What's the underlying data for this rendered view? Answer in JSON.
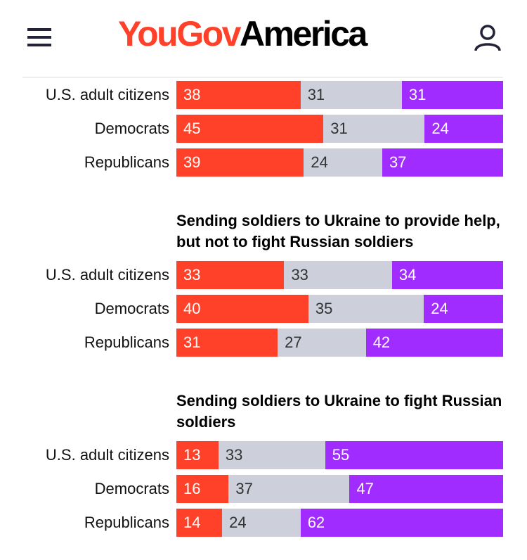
{
  "header": {
    "logo_part1": "YouGov",
    "logo_part2": "America"
  },
  "chart_data": {
    "type": "bar",
    "orientation": "horizontal",
    "stacked": true,
    "colors": [
      "#ff4129",
      "#cdd0da",
      "#a12cff"
    ],
    "sections": [
      {
        "title": "",
        "categories": [
          "U.S. adult citizens",
          "Democrats",
          "Republicans"
        ],
        "values": [
          [
            38,
            31,
            31
          ],
          [
            45,
            31,
            24
          ],
          [
            39,
            24,
            37
          ]
        ]
      },
      {
        "title": "Sending soldiers to Ukraine to provide help, but not to fight Russian soldiers",
        "categories": [
          "U.S. adult citizens",
          "Democrats",
          "Republicans"
        ],
        "values": [
          [
            33,
            33,
            34
          ],
          [
            40,
            35,
            24
          ],
          [
            31,
            27,
            42
          ]
        ]
      },
      {
        "title": "Sending soldiers to Ukraine to fight Russian soldiers",
        "categories": [
          "U.S. adult citizens",
          "Democrats",
          "Republicans"
        ],
        "values": [
          [
            13,
            33,
            55
          ],
          [
            16,
            37,
            47
          ],
          [
            14,
            24,
            62
          ]
        ]
      }
    ]
  }
}
